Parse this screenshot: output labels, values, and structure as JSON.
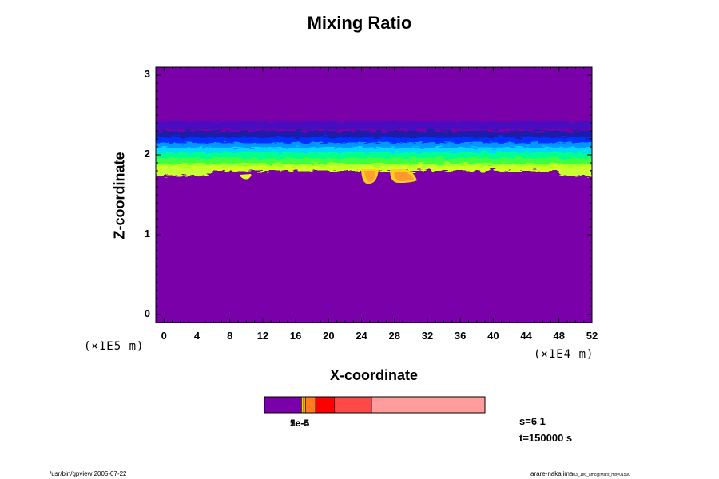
{
  "chart_data": {
    "type": "heatmap",
    "title": "Mixing Ratio",
    "xlabel": "X-coordinate",
    "ylabel": "Z-coordinate",
    "x_unit": "(×1E4 m)",
    "y_unit": "(×1E5 m)",
    "xlim": [
      -1,
      52
    ],
    "ylim": [
      -0.1,
      3.1
    ],
    "x_ticks": [
      "0",
      "4",
      "8",
      "12",
      "16",
      "20",
      "24",
      "28",
      "32",
      "36",
      "40",
      "44",
      "48",
      "52"
    ],
    "y_ticks": [
      "0",
      "1",
      "2",
      "3"
    ],
    "background_color": "#7a00aa",
    "colorbar_colors": [
      "#7a00aa",
      "#f0d000",
      "#ffa500",
      "#ff7a20",
      "#ff0000",
      "#ff4848",
      "#ff9c9c"
    ],
    "colorbar_fractions": [
      0.168,
      0.01,
      0.008,
      0.046,
      0.086,
      0.168,
      0.514
    ],
    "colorbar_labels": [
      "1e-5",
      "2e-5",
      "5e-4"
    ],
    "info": [
      "s=6 1",
      "t=150000 s"
    ]
  },
  "footer_left": "/usr/bin/gpview 2005-07-22",
  "footer_right": "arare-nakajima",
  "footer_right_small": "03_1e6_amc@Mars_mb=01500"
}
